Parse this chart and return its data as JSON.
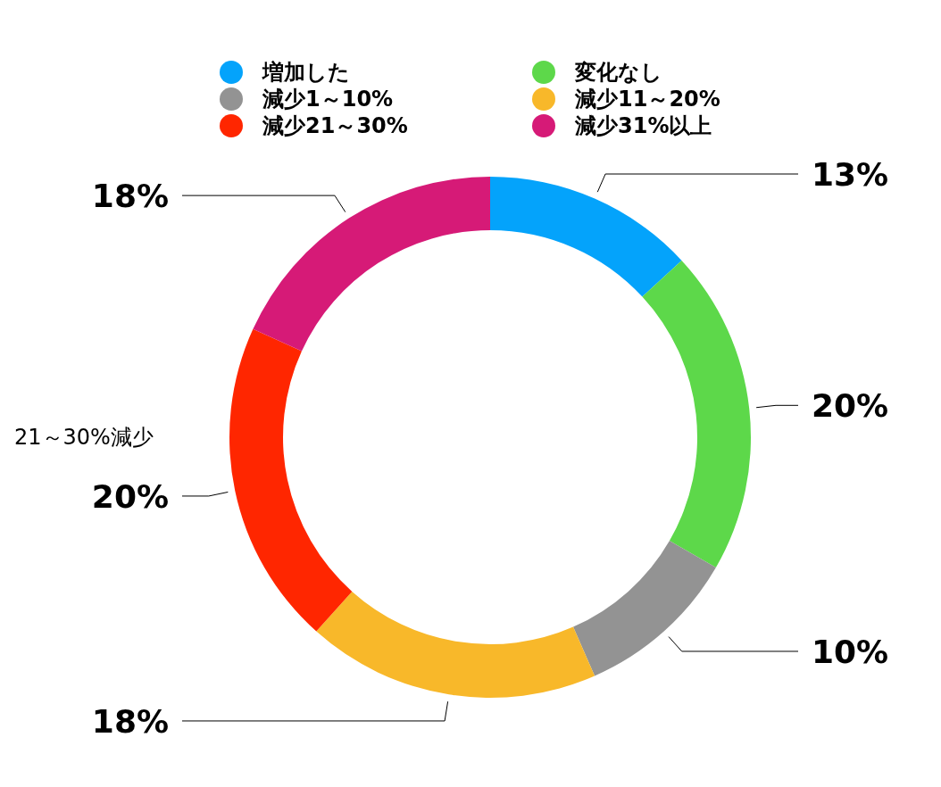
{
  "chart_data": {
    "type": "donut",
    "categories": [
      "増加した",
      "変化なし",
      "減少1～10%",
      "減少11～20%",
      "減少21～30%",
      "減少31%以上"
    ],
    "values": [
      13,
      20,
      10,
      18,
      20,
      18
    ],
    "colors": [
      "#04a3fb",
      "#5dd84a",
      "#939393",
      "#f8b82a",
      "#ff2600",
      "#d61a77"
    ],
    "value_labels": [
      "13%",
      "20%",
      "10%",
      "18%",
      "20%",
      "18%"
    ],
    "legend": "top",
    "annotations": [
      "21～30%減少"
    ]
  }
}
